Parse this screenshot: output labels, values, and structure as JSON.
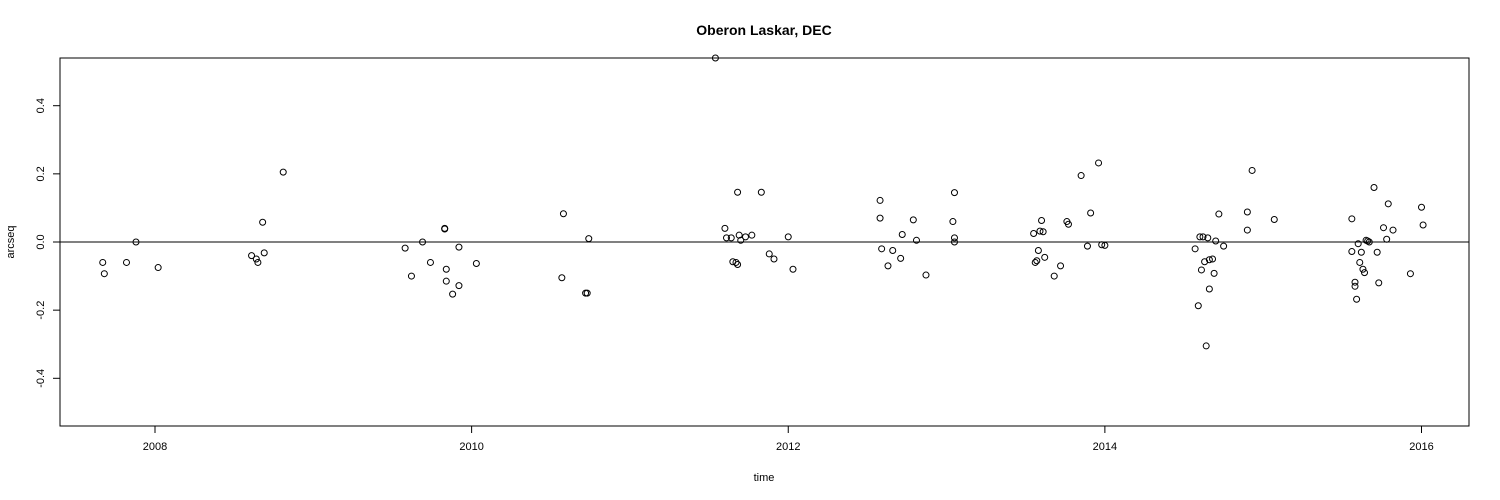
{
  "chart_data": {
    "type": "scatter",
    "title": "Oberon Laskar, DEC",
    "xlabel": "time",
    "ylabel": "arcseq",
    "xlim": [
      2007.4,
      2016.3
    ],
    "ylim": [
      -0.54,
      0.54
    ],
    "xticks": [
      2008,
      2010,
      2012,
      2014,
      2016
    ],
    "yticks": [
      -0.4,
      -0.2,
      0.0,
      0.2,
      0.4
    ],
    "reference_line_y": 0,
    "grid": false,
    "legend": "none",
    "points": [
      {
        "x": 2007.67,
        "y": -0.06
      },
      {
        "x": 2007.68,
        "y": -0.093
      },
      {
        "x": 2007.82,
        "y": -0.06
      },
      {
        "x": 2007.88,
        "y": 0.0
      },
      {
        "x": 2008.02,
        "y": -0.075
      },
      {
        "x": 2008.61,
        "y": -0.04
      },
      {
        "x": 2008.64,
        "y": -0.05
      },
      {
        "x": 2008.65,
        "y": -0.06
      },
      {
        "x": 2008.68,
        "y": 0.058
      },
      {
        "x": 2008.69,
        "y": -0.032
      },
      {
        "x": 2008.81,
        "y": 0.205
      },
      {
        "x": 2009.58,
        "y": -0.018
      },
      {
        "x": 2009.62,
        "y": -0.1
      },
      {
        "x": 2009.69,
        "y": 0.0
      },
      {
        "x": 2009.74,
        "y": -0.06
      },
      {
        "x": 2009.83,
        "y": 0.04
      },
      {
        "x": 2009.83,
        "y": 0.038
      },
      {
        "x": 2009.84,
        "y": -0.08
      },
      {
        "x": 2009.84,
        "y": -0.115
      },
      {
        "x": 2009.88,
        "y": -0.153
      },
      {
        "x": 2009.92,
        "y": -0.015
      },
      {
        "x": 2009.92,
        "y": -0.128
      },
      {
        "x": 2010.03,
        "y": -0.063
      },
      {
        "x": 2010.57,
        "y": -0.105
      },
      {
        "x": 2010.58,
        "y": 0.083
      },
      {
        "x": 2010.72,
        "y": -0.15
      },
      {
        "x": 2010.73,
        "y": -0.15
      },
      {
        "x": 2010.74,
        "y": 0.01
      },
      {
        "x": 2011.54,
        "y": 0.54
      },
      {
        "x": 2011.6,
        "y": 0.04
      },
      {
        "x": 2011.61,
        "y": 0.012
      },
      {
        "x": 2011.64,
        "y": 0.012
      },
      {
        "x": 2011.65,
        "y": -0.058
      },
      {
        "x": 2011.67,
        "y": -0.06
      },
      {
        "x": 2011.68,
        "y": 0.146
      },
      {
        "x": 2011.68,
        "y": -0.066
      },
      {
        "x": 2011.69,
        "y": 0.02
      },
      {
        "x": 2011.7,
        "y": 0.005
      },
      {
        "x": 2011.73,
        "y": 0.015
      },
      {
        "x": 2011.77,
        "y": 0.02
      },
      {
        "x": 2011.83,
        "y": 0.146
      },
      {
        "x": 2011.88,
        "y": -0.035
      },
      {
        "x": 2011.91,
        "y": -0.05
      },
      {
        "x": 2012.0,
        "y": 0.015
      },
      {
        "x": 2012.03,
        "y": -0.08
      },
      {
        "x": 2012.58,
        "y": 0.122
      },
      {
        "x": 2012.58,
        "y": 0.07
      },
      {
        "x": 2012.59,
        "y": -0.02
      },
      {
        "x": 2012.63,
        "y": -0.07
      },
      {
        "x": 2012.66,
        "y": -0.025
      },
      {
        "x": 2012.71,
        "y": -0.048
      },
      {
        "x": 2012.72,
        "y": 0.022
      },
      {
        "x": 2012.79,
        "y": 0.065
      },
      {
        "x": 2012.81,
        "y": 0.005
      },
      {
        "x": 2012.87,
        "y": -0.097
      },
      {
        "x": 2013.04,
        "y": 0.06
      },
      {
        "x": 2013.05,
        "y": 0.145
      },
      {
        "x": 2013.05,
        "y": 0.012
      },
      {
        "x": 2013.05,
        "y": 0.0
      },
      {
        "x": 2013.55,
        "y": 0.025
      },
      {
        "x": 2013.56,
        "y": -0.06
      },
      {
        "x": 2013.57,
        "y": -0.055
      },
      {
        "x": 2013.58,
        "y": -0.025
      },
      {
        "x": 2013.59,
        "y": 0.032
      },
      {
        "x": 2013.6,
        "y": 0.063
      },
      {
        "x": 2013.61,
        "y": 0.03
      },
      {
        "x": 2013.62,
        "y": -0.045
      },
      {
        "x": 2013.68,
        "y": -0.1
      },
      {
        "x": 2013.72,
        "y": -0.07
      },
      {
        "x": 2013.76,
        "y": 0.06
      },
      {
        "x": 2013.77,
        "y": 0.052
      },
      {
        "x": 2013.85,
        "y": 0.195
      },
      {
        "x": 2013.89,
        "y": -0.012
      },
      {
        "x": 2013.91,
        "y": 0.085
      },
      {
        "x": 2013.96,
        "y": 0.232
      },
      {
        "x": 2013.98,
        "y": -0.008
      },
      {
        "x": 2014.0,
        "y": -0.01
      },
      {
        "x": 2014.57,
        "y": -0.02
      },
      {
        "x": 2014.59,
        "y": -0.187
      },
      {
        "x": 2014.6,
        "y": 0.015
      },
      {
        "x": 2014.61,
        "y": -0.082
      },
      {
        "x": 2014.62,
        "y": 0.015
      },
      {
        "x": 2014.63,
        "y": -0.058
      },
      {
        "x": 2014.64,
        "y": -0.305
      },
      {
        "x": 2014.65,
        "y": 0.012
      },
      {
        "x": 2014.66,
        "y": -0.138
      },
      {
        "x": 2014.66,
        "y": -0.052
      },
      {
        "x": 2014.68,
        "y": -0.05
      },
      {
        "x": 2014.69,
        "y": -0.092
      },
      {
        "x": 2014.7,
        "y": 0.003
      },
      {
        "x": 2014.72,
        "y": 0.082
      },
      {
        "x": 2014.75,
        "y": -0.012
      },
      {
        "x": 2014.9,
        "y": 0.035
      },
      {
        "x": 2014.9,
        "y": 0.088
      },
      {
        "x": 2014.93,
        "y": 0.21
      },
      {
        "x": 2015.07,
        "y": 0.066
      },
      {
        "x": 2015.56,
        "y": 0.068
      },
      {
        "x": 2015.56,
        "y": -0.028
      },
      {
        "x": 2015.58,
        "y": -0.118
      },
      {
        "x": 2015.58,
        "y": -0.13
      },
      {
        "x": 2015.59,
        "y": -0.168
      },
      {
        "x": 2015.6,
        "y": -0.005
      },
      {
        "x": 2015.61,
        "y": -0.06
      },
      {
        "x": 2015.62,
        "y": -0.03
      },
      {
        "x": 2015.63,
        "y": -0.08
      },
      {
        "x": 2015.64,
        "y": -0.09
      },
      {
        "x": 2015.65,
        "y": 0.005
      },
      {
        "x": 2015.66,
        "y": 0.003
      },
      {
        "x": 2015.67,
        "y": 0.0
      },
      {
        "x": 2015.7,
        "y": 0.16
      },
      {
        "x": 2015.72,
        "y": -0.03
      },
      {
        "x": 2015.73,
        "y": -0.12
      },
      {
        "x": 2015.76,
        "y": 0.042
      },
      {
        "x": 2015.78,
        "y": 0.008
      },
      {
        "x": 2015.79,
        "y": 0.112
      },
      {
        "x": 2015.82,
        "y": 0.035
      },
      {
        "x": 2015.93,
        "y": -0.093
      },
      {
        "x": 2016.0,
        "y": 0.102
      },
      {
        "x": 2016.01,
        "y": 0.05
      }
    ]
  }
}
